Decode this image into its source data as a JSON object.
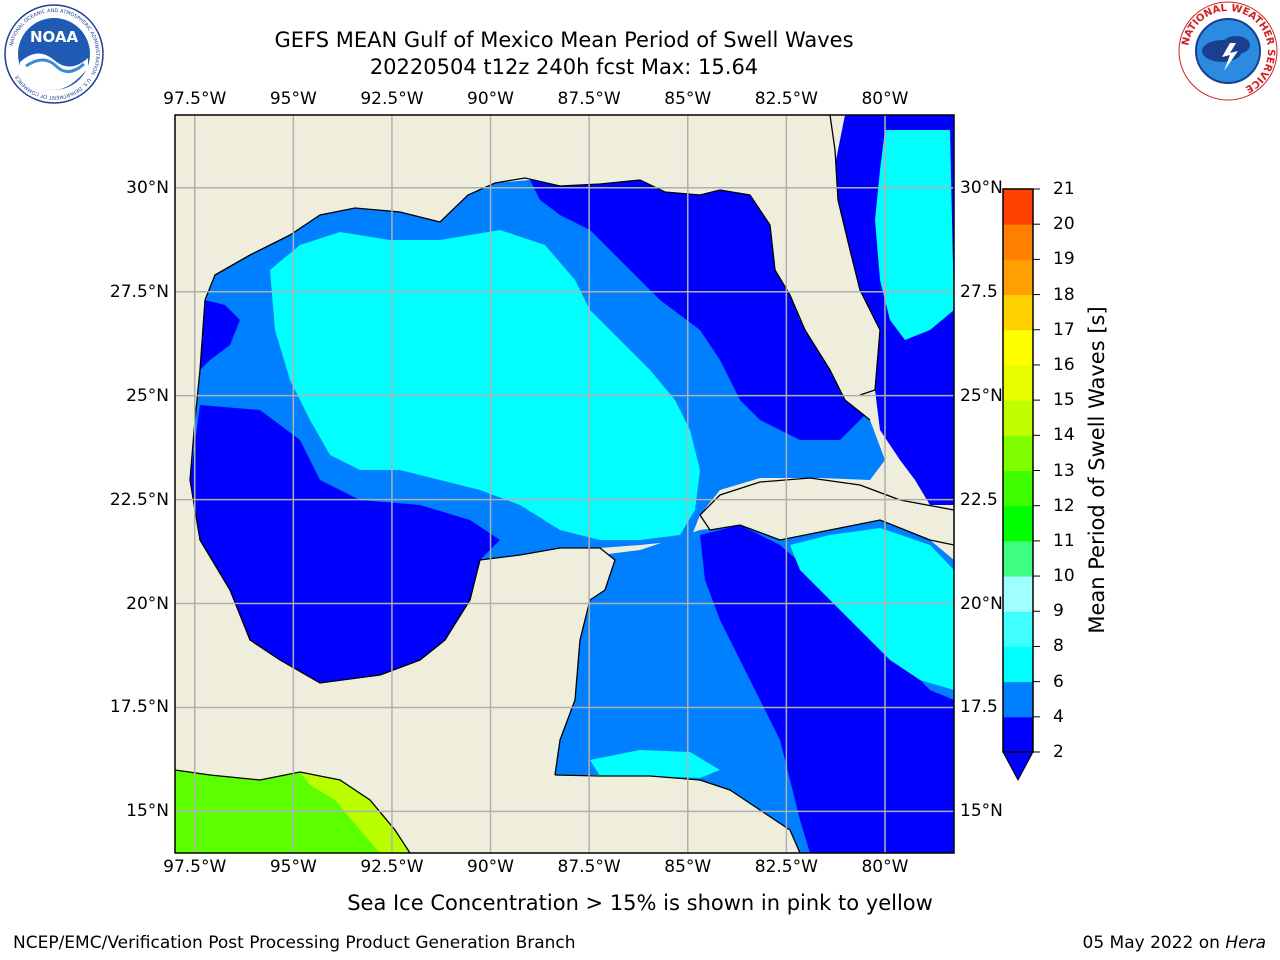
{
  "header": {
    "title": "GEFS MEAN Gulf of Mexico Mean Period of Swell Waves",
    "subtitle": "20220504 t12z 240h fcst   Max: 15.64",
    "left_logo_text": "NOAA",
    "left_logo_ring_text": "NATIONAL OCEANIC AND ATMOSPHERIC ADMINISTRATION · U.S. DEPARTMENT OF COMMERCE",
    "right_logo_ring_text": "NATIONAL WEATHER SERVICE"
  },
  "map": {
    "lon_ticks_top": [
      "97.5°W",
      "95°W",
      "92.5°W",
      "90°W",
      "87.5°W",
      "85°W",
      "82.5°W",
      "80°W"
    ],
    "lon_ticks_bottom": [
      "97.5°W",
      "95°W",
      "92.5°W",
      "90°W",
      "87.5°W",
      "85°W",
      "82.5°W",
      "80°W"
    ],
    "lat_ticks_left": [
      "30°N",
      "27.5°N",
      "25°N",
      "22.5°N",
      "20°N",
      "17.5°N",
      "15°N"
    ],
    "lat_ticks_right": [
      "30°N",
      "27.5",
      "25°N",
      "22.5",
      "20°N",
      "17.5",
      "15°N"
    ],
    "lon_range": [
      -98,
      -78.25
    ],
    "lat_range": [
      14,
      31.75
    ],
    "grid": true,
    "colors": {
      "land": "#efeedc",
      "band_2_4": "#0000ff",
      "band_4_6": "#0080ff",
      "band_6_8": "#00ffff",
      "band_12_14": "#b9ff00",
      "band_10_12": "#5bff00",
      "grid": "#b0b0b0"
    }
  },
  "colorbar": {
    "title": "Mean Period of Swell Waves [s]",
    "levels": [
      "2",
      "4",
      "6",
      "8",
      "9",
      "10",
      "11",
      "12",
      "13",
      "14",
      "15",
      "16",
      "17",
      "18",
      "19",
      "20",
      "21"
    ],
    "colors": [
      "#0000ff",
      "#0080ff",
      "#00ffff",
      "#40ffff",
      "#a0ffff",
      "#40ff80",
      "#00ff00",
      "#40ff00",
      "#80ff00",
      "#c0ff00",
      "#e8ff00",
      "#ffff00",
      "#ffd000",
      "#ffa000",
      "#ff8000",
      "#ff4000",
      "#ff0000"
    ],
    "extend_color": "#0000ff"
  },
  "caption": "Sea Ice Concentration > 15% is shown in pink to yellow",
  "footer": {
    "left": "NCEP/EMC/Verification Post Processing Product Generation Branch",
    "right_prefix": "05 May 2022 on ",
    "right_host": "Hera"
  }
}
